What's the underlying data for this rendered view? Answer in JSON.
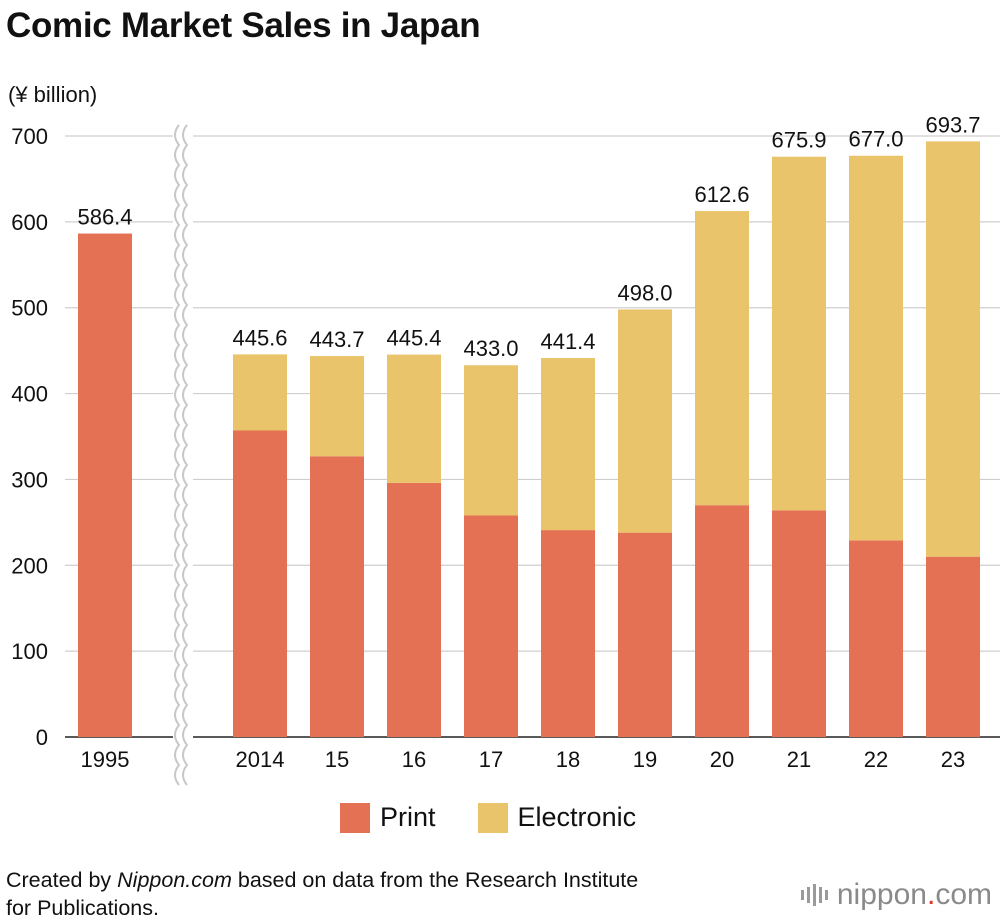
{
  "title": "Comic Market Sales in Japan",
  "unit_label": "(¥ billion)",
  "legend": [
    {
      "label": "Print",
      "color": "#e57155"
    },
    {
      "label": "Electronic",
      "color": "#e9c46a"
    }
  ],
  "source": {
    "prefix": "Created by ",
    "site": "Nippon.com",
    "rest": " based on data from the Research Institute",
    "line2": "for Publications."
  },
  "logo": {
    "name": "nippon",
    "dot": ".",
    "tld": "com"
  },
  "chart_data": {
    "type": "bar",
    "stacked": true,
    "title": "Comic Market Sales in Japan",
    "ylabel": "(¥ billion)",
    "ylim": [
      0,
      700
    ],
    "yticks": [
      0,
      100,
      200,
      300,
      400,
      500,
      600,
      700
    ],
    "grid": true,
    "axis_break_after": "1995",
    "categories": [
      "1995",
      "2014",
      "15",
      "16",
      "17",
      "18",
      "19",
      "20",
      "21",
      "22",
      "23"
    ],
    "series": [
      {
        "name": "Print",
        "color": "#e57155",
        "values": [
          586.4,
          357.0,
          327.0,
          296.0,
          258.0,
          241.0,
          238.0,
          270.0,
          264.0,
          229.0,
          210.0
        ]
      },
      {
        "name": "Electronic",
        "color": "#e9c46a",
        "values": [
          0,
          88.6,
          116.7,
          149.4,
          175.0,
          200.4,
          260.0,
          342.6,
          411.9,
          448.0,
          483.7
        ]
      }
    ],
    "totals": [
      "586.4",
      "445.6",
      "443.7",
      "445.4",
      "433.0",
      "441.4",
      "498.0",
      "612.6",
      "675.9",
      "677.0",
      "693.7"
    ]
  }
}
